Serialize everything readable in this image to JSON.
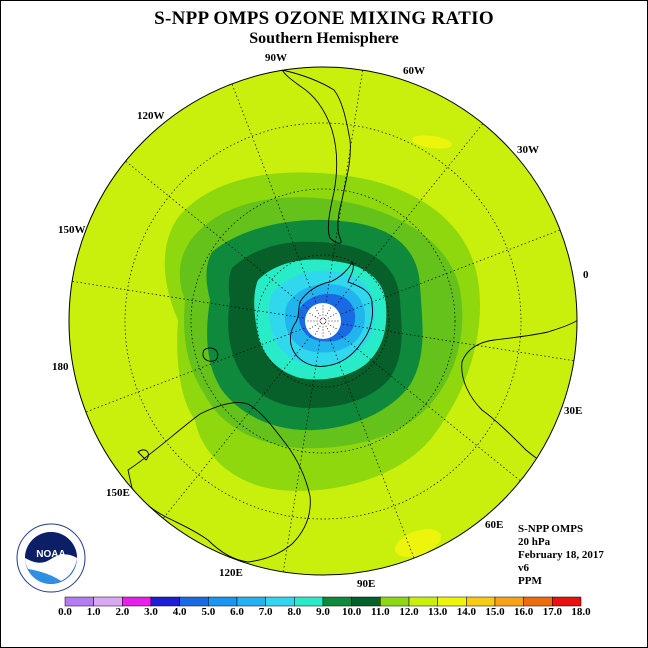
{
  "title": "S-NPP OMPS OZONE MIXING RATIO",
  "subtitle": "Southern Hemisphere",
  "longitude_labels": {
    "w90": "90W",
    "w60": "60W",
    "w30": "30W",
    "e0": "0",
    "e30": "30E",
    "e60": "60E",
    "e90": "90E",
    "e120": "120E",
    "e150": "150E",
    "e180": "180",
    "w150": "150W",
    "w120": "120W"
  },
  "info": {
    "instrument": "S-NPP OMPS",
    "level": "20 hPa",
    "date": "February 18, 2017",
    "version": "v6",
    "units": "PPM"
  },
  "logo_text": "NOAA",
  "colorbar": {
    "labels": [
      "0.0",
      "1.0",
      "2.0",
      "3.0",
      "4.0",
      "5.0",
      "6.0",
      "7.0",
      "8.0",
      "9.0",
      "10.0",
      "11.0",
      "12.0",
      "13.0",
      "14.0",
      "15.0",
      "16.0",
      "17.0",
      "18.0"
    ],
    "colors": [
      "#b57cf2",
      "#d8a8f0",
      "#e81fe8",
      "#1c1cd9",
      "#1a6ae6",
      "#1c95ee",
      "#22b4ee",
      "#30d8ee",
      "#28ecc8",
      "#0f8a3c",
      "#075f2a",
      "#8fd80e",
      "#c9f00c",
      "#eef50c",
      "#f5cc10",
      "#f5a510",
      "#f06a10",
      "#e81010",
      "#7a5430"
    ]
  },
  "colors": {
    "ozone_12_13": "#c9f00c",
    "ozone_11_12": "#8fd80e",
    "ozone_10_11": "#64c21a",
    "ozone_9_10": "#0f8a3c",
    "ozone_8_9": "#075f2a",
    "ozone_7_8": "#28ecc8",
    "ozone_6_7": "#30d8ee",
    "ozone_5_6": "#22b4ee",
    "ozone_4_5": "#1a6ae6",
    "ozone_13_14": "#eef50c"
  }
}
